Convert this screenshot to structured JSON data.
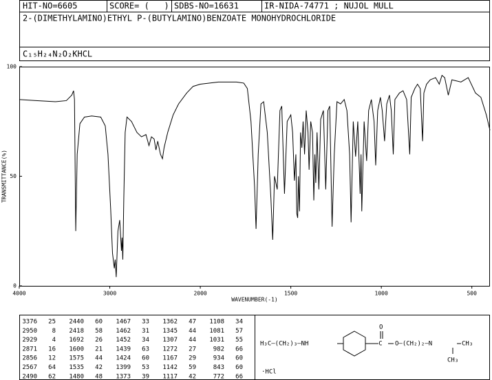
{
  "header": {
    "hit": "HIT-NO=6605",
    "score": "SCORE= (   )",
    "sdbs": "SDBS-NO=16631",
    "source": "IR-NIDA-74771 ; NUJOL MULL",
    "name": "2-(DIMETHYLAMINO)ETHYL P-(BUTYLAMINO)BENZOATE MONOHYDROCHLORIDE",
    "formula": "C₁₅H₂₄N₂O₂KHCL"
  },
  "chart_data": {
    "type": "line",
    "xlabel": "WAVENUMBER(-1)",
    "ylabel": "TRANSMITTANCE(%)",
    "color": "#000000",
    "xlim": [
      4000,
      400
    ],
    "ylim": [
      0,
      100
    ],
    "xticks": [
      4000,
      3000,
      2000,
      1500,
      1000,
      500
    ],
    "yticks": [
      0,
      50,
      100
    ],
    "x": [
      4000,
      3800,
      3600,
      3480,
      3420,
      3400,
      3390,
      3376,
      3360,
      3330,
      3280,
      3200,
      3100,
      3050,
      3020,
      2990,
      2970,
      2950,
      2940,
      2929,
      2910,
      2890,
      2871,
      2864,
      2856,
      2845,
      2830,
      2810,
      2760,
      2700,
      2650,
      2600,
      2567,
      2540,
      2510,
      2490,
      2470,
      2440,
      2418,
      2400,
      2360,
      2300,
      2240,
      2150,
      2080,
      2000,
      1900,
      1800,
      1760,
      1740,
      1720,
      1700,
      1692,
      1680,
      1665,
      1650,
      1630,
      1610,
      1600,
      1590,
      1575,
      1560,
      1550,
      1535,
      1520,
      1500,
      1490,
      1480,
      1472,
      1467,
      1462,
      1458,
      1452,
      1446,
      1439,
      1432,
      1424,
      1415,
      1405,
      1399,
      1390,
      1380,
      1373,
      1367,
      1362,
      1355,
      1345,
      1335,
      1320,
      1307,
      1295,
      1285,
      1272,
      1260,
      1245,
      1225,
      1205,
      1190,
      1175,
      1167,
      1155,
      1142,
      1130,
      1117,
      1112,
      1108,
      1095,
      1081,
      1070,
      1055,
      1040,
      1031,
      1020,
      1005,
      995,
      982,
      970,
      955,
      945,
      934,
      925,
      900,
      880,
      860,
      843,
      835,
      815,
      800,
      785,
      772,
      765,
      750,
      730,
      700,
      680,
      665,
      650,
      630,
      610,
      560,
      520,
      480,
      450,
      420,
      400
    ],
    "values": [
      85,
      84.5,
      84,
      84.5,
      87,
      89,
      85,
      25,
      60,
      74,
      77,
      77.5,
      77,
      73,
      60,
      35,
      15,
      8,
      12,
      4,
      25,
      30,
      16,
      22,
      12,
      40,
      70,
      77,
      75,
      70,
      68,
      69,
      64,
      68,
      67,
      62,
      66,
      60,
      58,
      63,
      70,
      78,
      83,
      88,
      91,
      92,
      93,
      93,
      92.5,
      90,
      75,
      45,
      26,
      60,
      83,
      84,
      70,
      40,
      21,
      50,
      44,
      80,
      82,
      42,
      75,
      78,
      70,
      48,
      60,
      33,
      31,
      50,
      34,
      70,
      63,
      75,
      60,
      80,
      70,
      53,
      75,
      70,
      39,
      60,
      47,
      70,
      44,
      76,
      80,
      44,
      80,
      82,
      27,
      60,
      84,
      83,
      85,
      80,
      60,
      29,
      75,
      59,
      75,
      42,
      60,
      34,
      75,
      57,
      80,
      85,
      75,
      55,
      80,
      86,
      80,
      66,
      83,
      87,
      80,
      60,
      85,
      88,
      89,
      85,
      60,
      86,
      90,
      92,
      90,
      66,
      88,
      92,
      94,
      95,
      92,
      96,
      95,
      87,
      94,
      93,
      95,
      88,
      86,
      78,
      71
    ]
  },
  "peak_table": [
    [
      [
        3376,
        25
      ],
      [
        2950,
        8
      ],
      [
        2929,
        4
      ],
      [
        2871,
        16
      ],
      [
        2856,
        12
      ],
      [
        2567,
        64
      ],
      [
        2490,
        62
      ]
    ],
    [
      [
        2440,
        60
      ],
      [
        2418,
        58
      ],
      [
        1692,
        26
      ],
      [
        1600,
        21
      ],
      [
        1575,
        44
      ],
      [
        1535,
        42
      ],
      [
        1480,
        48
      ]
    ],
    [
      [
        1467,
        33
      ],
      [
        1462,
        31
      ],
      [
        1452,
        34
      ],
      [
        1439,
        63
      ],
      [
        1424,
        60
      ],
      [
        1399,
        53
      ],
      [
        1373,
        39
      ]
    ],
    [
      [
        1362,
        47
      ],
      [
        1345,
        44
      ],
      [
        1307,
        44
      ],
      [
        1272,
        27
      ],
      [
        1167,
        29
      ],
      [
        1142,
        59
      ],
      [
        1117,
        42
      ]
    ],
    [
      [
        1108,
        34
      ],
      [
        1081,
        57
      ],
      [
        1031,
        55
      ],
      [
        982,
        66
      ],
      [
        934,
        60
      ],
      [
        843,
        60
      ],
      [
        772,
        66
      ]
    ]
  ],
  "structure": {
    "chain": "H₃C—(CH₂)₃—NH",
    "carbonyl_o": "O",
    "ester_o": "O—(CH₂)₂—N",
    "methyl_right": "CH₃",
    "methyl_down": "CH₃",
    "salt": "·HCl"
  }
}
